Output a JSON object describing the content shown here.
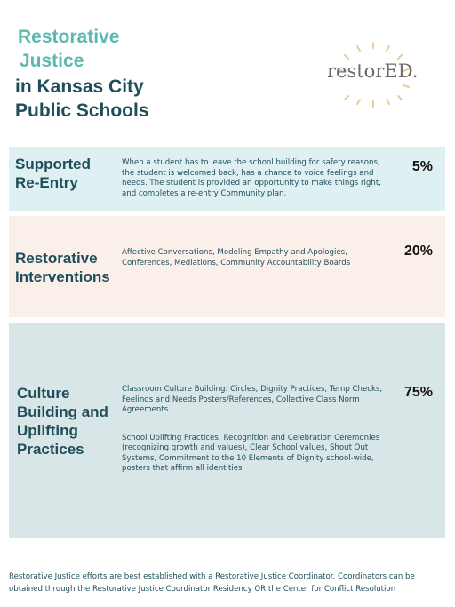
{
  "header": {
    "title_lines": [
      "Restorative",
      "Justice",
      "in Kansas City",
      "Public Schools"
    ],
    "logo": "restorED."
  },
  "sections": [
    {
      "title_lines": [
        "Supported",
        "Re-Entry"
      ],
      "paragraphs": [
        "When a student has to leave the school building for safety reasons, the student is welcomed back, has a chance to voice feelings and needs. The student is provided an opportunity to make things right, and completes a re-entry Community plan."
      ],
      "percent": "5%"
    },
    {
      "title_lines": [
        "Restorative",
        "Interventions"
      ],
      "paragraphs": [
        "Affective Conversations, Modeling Empathy and Apologies, Conferences, Mediations, Community Accountability Boards"
      ],
      "percent": "20%"
    },
    {
      "title_lines": [
        "Culture",
        "Building and",
        "Uplifting",
        "Practices"
      ],
      "paragraphs": [
        "Classroom Culture Building: Circles, Dignity Practices, Temp Checks, Feelings and Needs Posters/References, Collective Class Norm Agreements",
        "School Uplifting Practices: Recognition and Celebration Ceremonies (recognizing growth and values), Clear School values, Shout Out Systems, Commitment to the 10 Elements of Dignity school-wide, posters that affirm all identities"
      ],
      "percent": "75%"
    }
  ],
  "footer": "Restorative Justice efforts are best established with a Restorative Justice Coordinator. Coordinators can be obtained through the Restorative Justice Coordinator Residency OR the Center for Conflict Resolution"
}
